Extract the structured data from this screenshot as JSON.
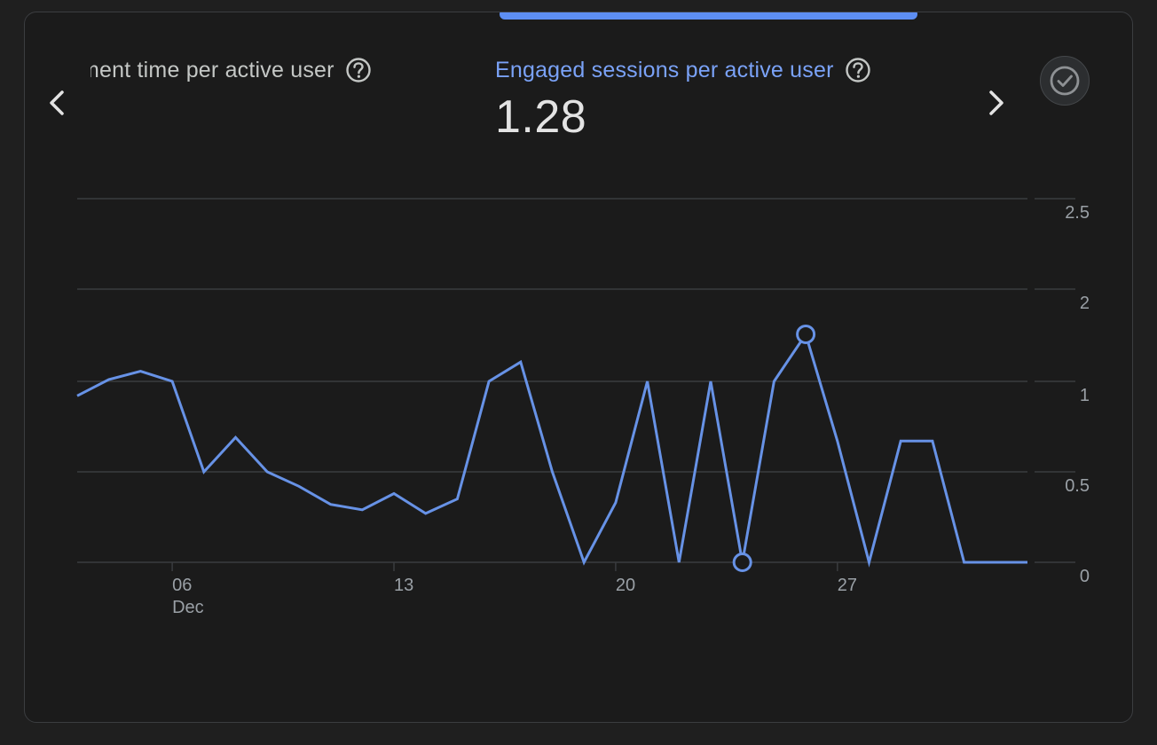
{
  "metrics": {
    "previous_label": "Average engagement time per active user",
    "previous_visible_label": "ment time per active user",
    "active_label": "Engaged sessions per active user",
    "active_value": "1.28"
  },
  "icons": {
    "prev": "chevron-left-icon",
    "next": "chevron-right-icon",
    "help": "help-circle-icon",
    "check": "check-circle-icon"
  },
  "colors": {
    "accent": "#5d8ef2",
    "line": "#6792e6",
    "grid": "#3a3c3f",
    "text_muted": "#9aa0a6"
  },
  "chart_data": {
    "type": "line",
    "x": [
      "Dec 03",
      "Dec 04",
      "Dec 05",
      "Dec 06",
      "Dec 07",
      "Dec 08",
      "Dec 09",
      "Dec 10",
      "Dec 11",
      "Dec 12",
      "Dec 13",
      "Dec 14",
      "Dec 15",
      "Dec 16",
      "Dec 17",
      "Dec 18",
      "Dec 19",
      "Dec 20",
      "Dec 21",
      "Dec 22",
      "Dec 23",
      "Dec 24",
      "Dec 25",
      "Dec 26",
      "Dec 27",
      "Dec 28",
      "Dec 29",
      "Dec 30",
      "Dec 31",
      "Jan 01",
      "Jan 02"
    ],
    "series": [
      {
        "values": [
          0.92,
          1.02,
          1.11,
          1.0,
          0.5,
          0.69,
          0.5,
          0.42,
          0.32,
          0.29,
          0.38,
          0.27,
          0.35,
          1.0,
          1.21,
          0.5,
          0.0,
          0.33,
          1.0,
          0.0,
          1.0,
          0.0,
          1.0,
          1.51,
          0.67,
          0.0,
          0.67,
          0.67,
          0.0,
          0.0,
          0.0
        ]
      }
    ],
    "highlighted_points": [
      "Dec 24",
      "Dec 26"
    ],
    "x_ticks": [
      {
        "label": "06",
        "sublabel": "Dec",
        "x": "Dec 06"
      },
      {
        "label": "13",
        "x": "Dec 13"
      },
      {
        "label": "20",
        "x": "Dec 20"
      },
      {
        "label": "27",
        "x": "Dec 27"
      }
    ],
    "y_ticks": [
      "0",
      "0.5",
      "1",
      "2",
      "2.5"
    ],
    "y_axis": "right",
    "grid": true,
    "title": "",
    "xlabel": "",
    "ylabel": ""
  }
}
